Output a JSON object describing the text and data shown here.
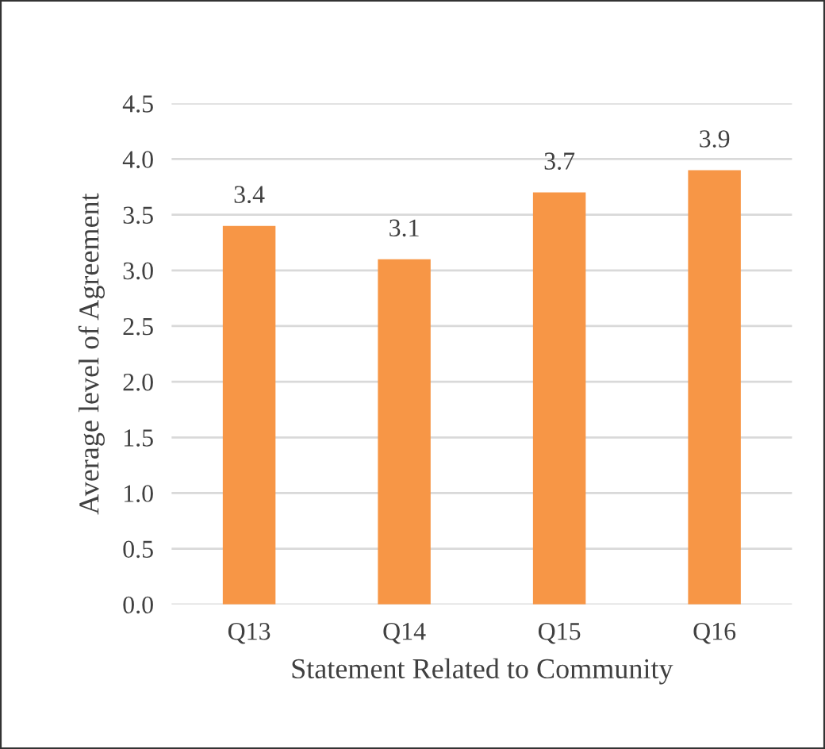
{
  "chart_data": {
    "type": "bar",
    "xlabel": "Statement Related to Community",
    "ylabel": "Average level of Agreement",
    "categories": [
      "Q13",
      "Q14",
      "Q15",
      "Q16"
    ],
    "values": [
      3.4,
      3.1,
      3.7,
      3.9
    ],
    "color": "#f79646",
    "ylim": [
      0,
      4.5
    ],
    "yticks": [
      {
        "value": 0,
        "label": "0.0"
      },
      {
        "value": 0.5,
        "label": "0.5"
      },
      {
        "value": 1,
        "label": "1.0"
      },
      {
        "value": 1.5,
        "label": "1.5"
      },
      {
        "value": 2,
        "label": "2.0"
      },
      {
        "value": 2.5,
        "label": "2.5"
      },
      {
        "value": 3,
        "label": "3.0"
      },
      {
        "value": 3.5,
        "label": "3.5"
      },
      {
        "value": 4,
        "label": "4.0"
      },
      {
        "value": 4.5,
        "label": "4.5"
      }
    ],
    "grid": "y",
    "data_labels": true,
    "legend": false
  }
}
